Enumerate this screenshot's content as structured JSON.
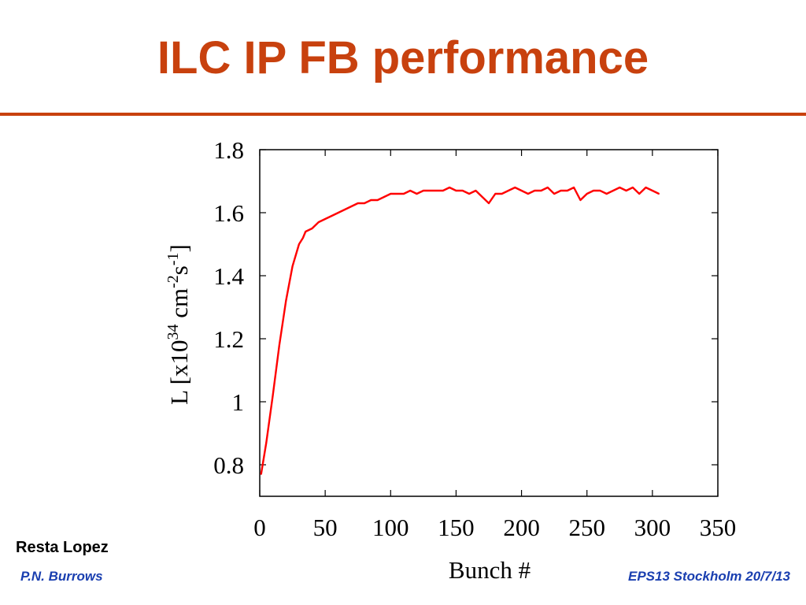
{
  "slide": {
    "title": "ILC IP FB performance",
    "accent_color": "#c8410e"
  },
  "footer": {
    "author": "Resta Lopez",
    "presenter": "P.N. Burrows",
    "conference": "EPS13 Stockholm  20/7/13",
    "footer_color": "#1a3fb0"
  },
  "chart_data": {
    "type": "line",
    "xlabel": "Bunch #",
    "ylabel": "L [x10^34 cm^-2 s^-1]",
    "xlim": [
      0,
      350
    ],
    "ylim": [
      0.7,
      1.8
    ],
    "x_ticks": [
      "0",
      "50",
      "100",
      "150",
      "200",
      "250",
      "300",
      "350"
    ],
    "y_ticks": [
      "0.8",
      "1",
      "1.2",
      "1.4",
      "1.6",
      "1.8"
    ],
    "grid": false,
    "line_color": "#ff0000",
    "series": [
      {
        "x": [
          1,
          5,
          10,
          15,
          20,
          25,
          30,
          33,
          35,
          40,
          45,
          50,
          55,
          60,
          65,
          70,
          75,
          80,
          85,
          90,
          95,
          100,
          105,
          110,
          115,
          120,
          125,
          130,
          135,
          140,
          145,
          150,
          155,
          160,
          165,
          170,
          175,
          180,
          185,
          190,
          195,
          200,
          205,
          210,
          215,
          220,
          225,
          230,
          235,
          240,
          245,
          250,
          255,
          260,
          265,
          270,
          275,
          280,
          285,
          290,
          295,
          300,
          305
        ],
        "values": [
          0.77,
          0.87,
          1.02,
          1.18,
          1.32,
          1.43,
          1.5,
          1.52,
          1.54,
          1.55,
          1.57,
          1.58,
          1.59,
          1.6,
          1.61,
          1.62,
          1.63,
          1.63,
          1.64,
          1.64,
          1.65,
          1.66,
          1.66,
          1.66,
          1.67,
          1.66,
          1.67,
          1.67,
          1.67,
          1.67,
          1.68,
          1.67,
          1.67,
          1.66,
          1.67,
          1.65,
          1.63,
          1.66,
          1.66,
          1.67,
          1.68,
          1.67,
          1.66,
          1.67,
          1.67,
          1.68,
          1.66,
          1.67,
          1.67,
          1.68,
          1.64,
          1.66,
          1.67,
          1.67,
          1.66,
          1.67,
          1.68,
          1.67,
          1.68,
          1.66,
          1.68,
          1.67,
          1.66
        ]
      }
    ]
  }
}
